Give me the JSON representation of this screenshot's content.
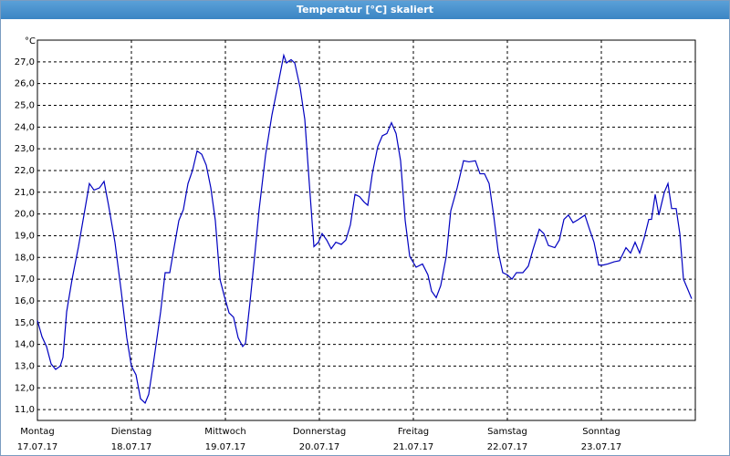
{
  "window_title": "Temperatur [°C] skaliert",
  "chart_data": {
    "type": "line",
    "y_label": "°C",
    "xlim": [
      0,
      7
    ],
    "ylim": [
      10.5,
      28
    ],
    "xticks": [
      {
        "value": 0,
        "label": "Montag",
        "date": "17.07.17"
      },
      {
        "value": 1,
        "label": "Dienstag",
        "date": "18.07.17"
      },
      {
        "value": 2,
        "label": "Mittwoch",
        "date": "19.07.17"
      },
      {
        "value": 3,
        "label": "Donnerstag",
        "date": "20.07.17"
      },
      {
        "value": 4,
        "label": "Freitag",
        "date": "21.07.17"
      },
      {
        "value": 5,
        "label": "Samstag",
        "date": "22.07.17"
      },
      {
        "value": 6,
        "label": "Sonntag",
        "date": "23.07.17"
      }
    ],
    "yticks": [
      {
        "value": 11,
        "label": "11,0"
      },
      {
        "value": 12,
        "label": "12,0"
      },
      {
        "value": 13,
        "label": "13,0"
      },
      {
        "value": 14,
        "label": "14,0"
      },
      {
        "value": 15,
        "label": "15,0"
      },
      {
        "value": 16,
        "label": "16,0"
      },
      {
        "value": 17,
        "label": "17,0"
      },
      {
        "value": 18,
        "label": "18,0"
      },
      {
        "value": 19,
        "label": "19,0"
      },
      {
        "value": 20,
        "label": "20,0"
      },
      {
        "value": 21,
        "label": "21,0"
      },
      {
        "value": 22,
        "label": "22,0"
      },
      {
        "value": 23,
        "label": "23,0"
      },
      {
        "value": 24,
        "label": "24,0"
      },
      {
        "value": 25,
        "label": "25,0"
      },
      {
        "value": 26,
        "label": "26,0"
      },
      {
        "value": 27,
        "label": "27,0"
      }
    ],
    "grid": true,
    "x": [
      0,
      0.049,
      0.097,
      0.146,
      0.194,
      0.243,
      0.272,
      0.311,
      0.369,
      0.437,
      0.505,
      0.553,
      0.602,
      0.66,
      0.709,
      0.757,
      0.825,
      0.893,
      0.951,
      1.0,
      1.049,
      1.097,
      1.146,
      1.184,
      1.243,
      1.311,
      1.359,
      1.408,
      1.456,
      1.505,
      1.553,
      1.602,
      1.65,
      1.699,
      1.748,
      1.796,
      1.845,
      1.893,
      1.942,
      1.99,
      2.039,
      2.087,
      2.136,
      2.184,
      2.214,
      2.262,
      2.311,
      2.359,
      2.427,
      2.495,
      2.553,
      2.621,
      2.65,
      2.699,
      2.738,
      2.796,
      2.845,
      2.893,
      2.942,
      2.99,
      3.029,
      3.078,
      3.126,
      3.175,
      3.233,
      3.282,
      3.33,
      3.379,
      3.427,
      3.476,
      3.515,
      3.563,
      3.621,
      3.67,
      3.718,
      3.767,
      3.816,
      3.864,
      3.913,
      3.961,
      4.029,
      4.097,
      4.155,
      4.194,
      4.243,
      4.291,
      4.35,
      4.398,
      4.466,
      4.534,
      4.592,
      4.66,
      4.709,
      4.757,
      4.806,
      4.854,
      4.903,
      4.951,
      5.0,
      5.049,
      5.097,
      5.165,
      5.223,
      5.272,
      5.34,
      5.388,
      5.437,
      5.505,
      5.553,
      5.602,
      5.65,
      5.699,
      5.757,
      5.825,
      5.874,
      5.922,
      5.971,
      6.019,
      6.068,
      6.136,
      6.194,
      6.262,
      6.311,
      6.359,
      6.408,
      6.456,
      6.505,
      6.534,
      6.573,
      6.612,
      6.67,
      6.709,
      6.748,
      6.796,
      6.835,
      6.874,
      6.913,
      6.961
    ],
    "series": [
      {
        "color": "#0000c0",
        "values": [
          15.1,
          14.35,
          13.9,
          13.1,
          12.85,
          13.0,
          13.4,
          15.5,
          17.0,
          18.5,
          20.2,
          21.4,
          21.1,
          21.2,
          21.5,
          20.4,
          18.7,
          16.4,
          14.3,
          13.0,
          12.6,
          11.5,
          11.3,
          11.7,
          13.4,
          15.5,
          17.3,
          17.3,
          18.5,
          19.7,
          20.2,
          21.4,
          22.0,
          22.9,
          22.75,
          22.25,
          21.2,
          19.7,
          17.0,
          16.2,
          15.45,
          15.25,
          14.3,
          13.9,
          14.05,
          15.95,
          18.05,
          20.2,
          22.7,
          24.55,
          25.8,
          27.3,
          26.95,
          27.1,
          26.95,
          25.8,
          24.35,
          21.4,
          18.5,
          18.7,
          19.1,
          18.8,
          18.4,
          18.7,
          18.6,
          18.8,
          19.5,
          20.9,
          20.8,
          20.55,
          20.4,
          21.85,
          23.1,
          23.6,
          23.7,
          24.2,
          23.7,
          22.45,
          19.7,
          18.05,
          17.55,
          17.7,
          17.2,
          16.45,
          16.15,
          16.7,
          18.05,
          20.15,
          21.2,
          22.45,
          22.4,
          22.45,
          21.85,
          21.85,
          21.4,
          19.95,
          18.25,
          17.3,
          17.2,
          17.0,
          17.3,
          17.3,
          17.6,
          18.35,
          19.3,
          19.1,
          18.55,
          18.45,
          18.8,
          19.75,
          19.95,
          19.6,
          19.75,
          19.95,
          19.3,
          18.7,
          17.65,
          17.65,
          17.7,
          17.8,
          17.85,
          18.45,
          18.2,
          18.7,
          18.2,
          18.9,
          19.75,
          19.75,
          20.9,
          19.95,
          21.0,
          21.4,
          20.25,
          20.25,
          19.1,
          17.0,
          16.6,
          16.1
        ]
      }
    ]
  }
}
